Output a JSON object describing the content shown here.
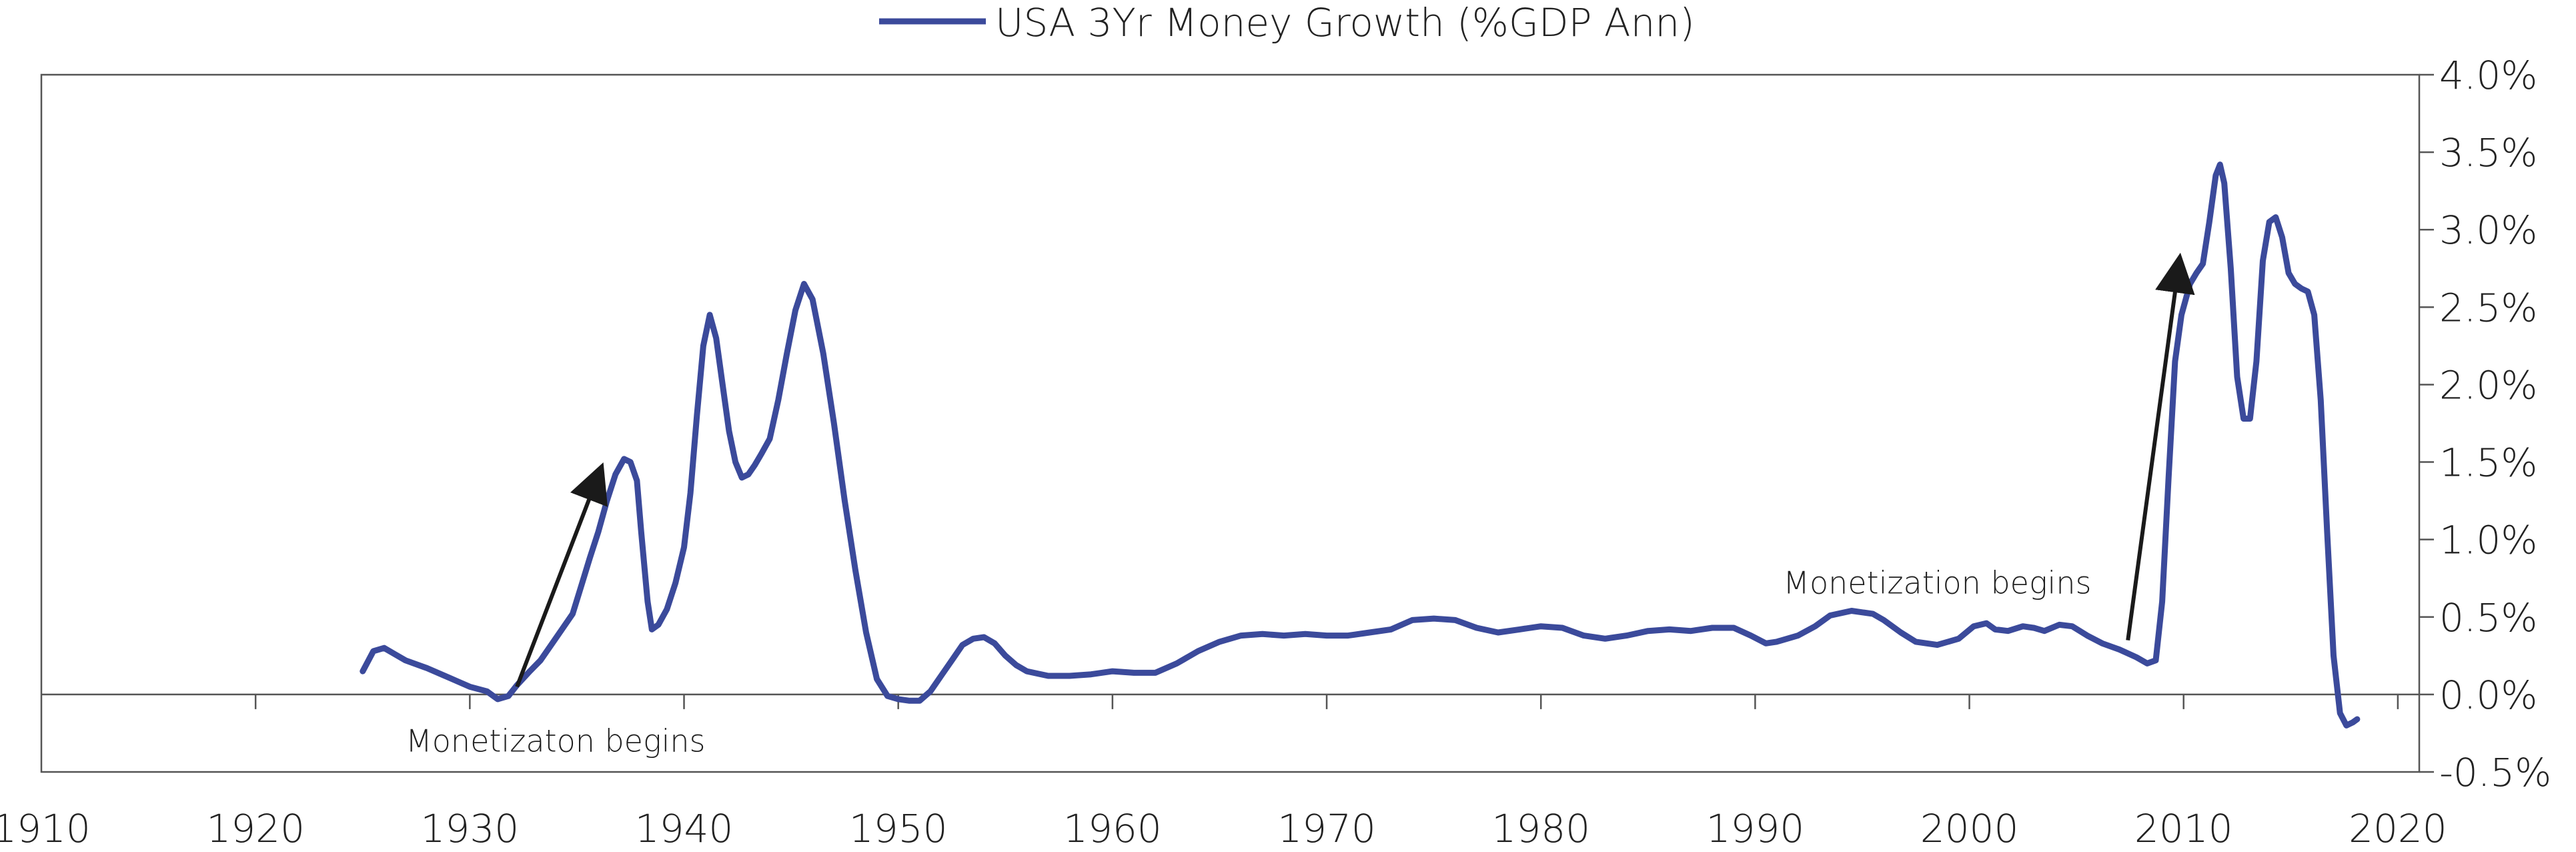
{
  "chart_data": {
    "type": "line",
    "title": "",
    "xlabel": "",
    "ylabel": "",
    "xlim": [
      1910,
      2021
    ],
    "ylim": [
      -0.5,
      4.0
    ],
    "x_ticks": [
      "1910",
      "1920",
      "1930",
      "1940",
      "1950",
      "1960",
      "1970",
      "1980",
      "1990",
      "2000",
      "2010",
      "2020"
    ],
    "y_ticks": [
      {
        "value": 4.0,
        "label": "4.0%"
      },
      {
        "value": 3.5,
        "label": "3.5%"
      },
      {
        "value": 3.0,
        "label": "3.0%"
      },
      {
        "value": 2.5,
        "label": "2.5%"
      },
      {
        "value": 2.0,
        "label": "2.0%"
      },
      {
        "value": 1.5,
        "label": "1.5%"
      },
      {
        "value": 1.0,
        "label": "1.0%"
      },
      {
        "value": 0.5,
        "label": "0.5%"
      },
      {
        "value": 0.0,
        "label": "0.0%"
      },
      {
        "value": -0.5,
        "label": "-0.5%"
      }
    ],
    "grid": false,
    "legend": {
      "position": "top-center"
    },
    "colors": {
      "series": "#3b4a9b",
      "arrow": "#1a1a1a",
      "axis": "#555555"
    },
    "series": [
      {
        "name": "USA 3Yr Money Growth (%GDP Ann)",
        "points": [
          [
            1925.0,
            0.15
          ],
          [
            1925.5,
            0.28
          ],
          [
            1926.0,
            0.3
          ],
          [
            1926.5,
            0.26
          ],
          [
            1927.0,
            0.22
          ],
          [
            1928.0,
            0.17
          ],
          [
            1929.0,
            0.11
          ],
          [
            1930.0,
            0.05
          ],
          [
            1930.8,
            0.02
          ],
          [
            1931.3,
            -0.03
          ],
          [
            1931.8,
            -0.01
          ],
          [
            1932.2,
            0.06
          ],
          [
            1932.8,
            0.15
          ],
          [
            1933.3,
            0.22
          ],
          [
            1933.8,
            0.32
          ],
          [
            1934.3,
            0.42
          ],
          [
            1934.8,
            0.52
          ],
          [
            1935.2,
            0.7
          ],
          [
            1935.6,
            0.88
          ],
          [
            1936.0,
            1.05
          ],
          [
            1936.4,
            1.25
          ],
          [
            1936.8,
            1.42
          ],
          [
            1937.2,
            1.52
          ],
          [
            1937.5,
            1.5
          ],
          [
            1937.8,
            1.38
          ],
          [
            1938.0,
            1.05
          ],
          [
            1938.3,
            0.6
          ],
          [
            1938.5,
            0.42
          ],
          [
            1938.8,
            0.45
          ],
          [
            1939.2,
            0.55
          ],
          [
            1939.6,
            0.72
          ],
          [
            1940.0,
            0.95
          ],
          [
            1940.3,
            1.3
          ],
          [
            1940.6,
            1.8
          ],
          [
            1940.9,
            2.25
          ],
          [
            1941.2,
            2.45
          ],
          [
            1941.5,
            2.3
          ],
          [
            1941.8,
            2.0
          ],
          [
            1942.1,
            1.7
          ],
          [
            1942.4,
            1.5
          ],
          [
            1942.7,
            1.4
          ],
          [
            1943.0,
            1.42
          ],
          [
            1943.3,
            1.48
          ],
          [
            1943.6,
            1.55
          ],
          [
            1944.0,
            1.65
          ],
          [
            1944.4,
            1.9
          ],
          [
            1944.8,
            2.2
          ],
          [
            1945.2,
            2.48
          ],
          [
            1945.6,
            2.65
          ],
          [
            1946.0,
            2.55
          ],
          [
            1946.5,
            2.2
          ],
          [
            1947.0,
            1.75
          ],
          [
            1947.5,
            1.25
          ],
          [
            1948.0,
            0.8
          ],
          [
            1948.5,
            0.4
          ],
          [
            1949.0,
            0.1
          ],
          [
            1949.5,
            -0.01
          ],
          [
            1950.0,
            -0.03
          ],
          [
            1950.5,
            -0.04
          ],
          [
            1951.0,
            -0.04
          ],
          [
            1951.5,
            0.02
          ],
          [
            1952.0,
            0.12
          ],
          [
            1952.5,
            0.22
          ],
          [
            1953.0,
            0.32
          ],
          [
            1953.5,
            0.36
          ],
          [
            1954.0,
            0.37
          ],
          [
            1954.5,
            0.33
          ],
          [
            1955.0,
            0.25
          ],
          [
            1955.5,
            0.19
          ],
          [
            1956.0,
            0.15
          ],
          [
            1957.0,
            0.12
          ],
          [
            1958.0,
            0.12
          ],
          [
            1959.0,
            0.13
          ],
          [
            1960.0,
            0.15
          ],
          [
            1961.0,
            0.14
          ],
          [
            1962.0,
            0.14
          ],
          [
            1963.0,
            0.2
          ],
          [
            1964.0,
            0.28
          ],
          [
            1965.0,
            0.34
          ],
          [
            1966.0,
            0.38
          ],
          [
            1967.0,
            0.39
          ],
          [
            1968.0,
            0.38
          ],
          [
            1969.0,
            0.39
          ],
          [
            1970.0,
            0.38
          ],
          [
            1971.0,
            0.38
          ],
          [
            1972.0,
            0.4
          ],
          [
            1973.0,
            0.42
          ],
          [
            1974.0,
            0.48
          ],
          [
            1975.0,
            0.49
          ],
          [
            1976.0,
            0.48
          ],
          [
            1977.0,
            0.43
          ],
          [
            1978.0,
            0.4
          ],
          [
            1979.0,
            0.42
          ],
          [
            1980.0,
            0.44
          ],
          [
            1981.0,
            0.43
          ],
          [
            1982.0,
            0.38
          ],
          [
            1983.0,
            0.36
          ],
          [
            1984.0,
            0.38
          ],
          [
            1985.0,
            0.41
          ],
          [
            1986.0,
            0.42
          ],
          [
            1987.0,
            0.41
          ],
          [
            1988.0,
            0.43
          ],
          [
            1989.0,
            0.43
          ],
          [
            1989.8,
            0.38
          ],
          [
            1990.5,
            0.33
          ],
          [
            1991.0,
            0.34
          ],
          [
            1992.0,
            0.38
          ],
          [
            1992.8,
            0.44
          ],
          [
            1993.5,
            0.51
          ],
          [
            1994.5,
            0.54
          ],
          [
            1995.5,
            0.52
          ],
          [
            1996.0,
            0.48
          ],
          [
            1996.8,
            0.4
          ],
          [
            1997.5,
            0.34
          ],
          [
            1998.5,
            0.32
          ],
          [
            1999.5,
            0.36
          ],
          [
            2000.2,
            0.44
          ],
          [
            2000.8,
            0.46
          ],
          [
            2001.2,
            0.42
          ],
          [
            2001.8,
            0.41
          ],
          [
            2002.5,
            0.44
          ],
          [
            2003.0,
            0.43
          ],
          [
            2003.5,
            0.41
          ],
          [
            2004.2,
            0.45
          ],
          [
            2004.8,
            0.44
          ],
          [
            2005.5,
            0.38
          ],
          [
            2006.2,
            0.33
          ],
          [
            2007.0,
            0.29
          ],
          [
            2007.8,
            0.24
          ],
          [
            2008.3,
            0.2
          ],
          [
            2008.7,
            0.22
          ],
          [
            2009.0,
            0.6
          ],
          [
            2009.3,
            1.4
          ],
          [
            2009.6,
            2.15
          ],
          [
            2009.9,
            2.45
          ],
          [
            2010.3,
            2.65
          ],
          [
            2010.6,
            2.72
          ],
          [
            2010.9,
            2.78
          ],
          [
            2011.2,
            3.05
          ],
          [
            2011.5,
            3.35
          ],
          [
            2011.7,
            3.42
          ],
          [
            2011.9,
            3.3
          ],
          [
            2012.2,
            2.75
          ],
          [
            2012.5,
            2.05
          ],
          [
            2012.8,
            1.78
          ],
          [
            2013.1,
            1.78
          ],
          [
            2013.4,
            2.15
          ],
          [
            2013.7,
            2.8
          ],
          [
            2014.0,
            3.05
          ],
          [
            2014.3,
            3.08
          ],
          [
            2014.6,
            2.95
          ],
          [
            2014.9,
            2.72
          ],
          [
            2015.2,
            2.65
          ],
          [
            2015.5,
            2.62
          ],
          [
            2015.8,
            2.6
          ],
          [
            2016.1,
            2.45
          ],
          [
            2016.4,
            1.9
          ],
          [
            2016.7,
            1.05
          ],
          [
            2017.0,
            0.25
          ],
          [
            2017.3,
            -0.12
          ],
          [
            2017.6,
            -0.2
          ],
          [
            2017.9,
            -0.18
          ],
          [
            2018.1,
            -0.16
          ]
        ]
      }
    ],
    "annotations": [
      {
        "text": "Monetizaton begins",
        "x": 1934.0,
        "y": -0.3
      },
      {
        "text": "Monetization begins",
        "x": 1998.5,
        "y": 0.72
      }
    ],
    "arrows": [
      {
        "from": [
          1932.2,
          0.05
        ],
        "to": [
          1936.1,
          1.45
        ]
      },
      {
        "from": [
          2007.4,
          0.35
        ],
        "to": [
          2009.8,
          2.8
        ]
      }
    ]
  }
}
